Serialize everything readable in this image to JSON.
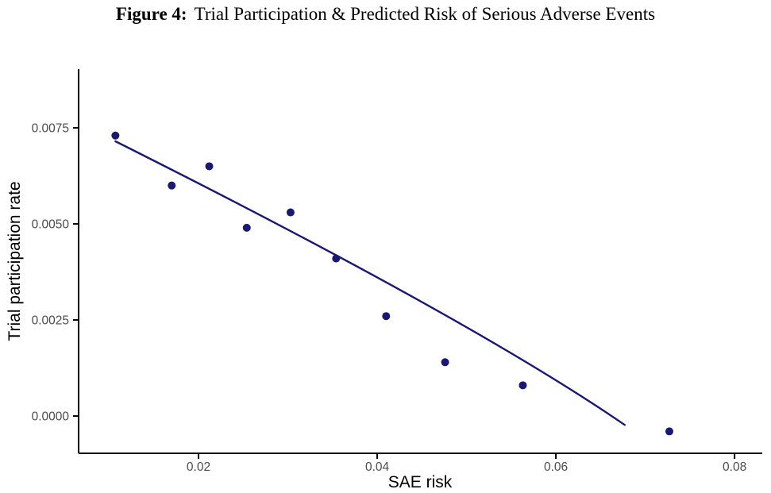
{
  "figure_caption": {
    "label": "Figure 4:",
    "text": "Trial Participation & Predicted Risk of Serious Adverse Events"
  },
  "chart_data": {
    "type": "scatter",
    "title": "Figure 4: Trial Participation & Predicted Risk of Serious Adverse Events",
    "xlabel": "SAE risk",
    "ylabel": "Trial participation rate",
    "xlim": [
      0.00658,
      0.0831
    ],
    "ylim": [
      -0.00097,
      0.00903
    ],
    "grid": false,
    "legend": false,
    "point_color": "#191974",
    "line_color": "#191974",
    "axis_color": "#000000",
    "tick_label_color": "#4d4d4d",
    "x_ticks": [
      {
        "value": 0.02,
        "label": "0.02"
      },
      {
        "value": 0.04,
        "label": "0.04"
      },
      {
        "value": 0.06,
        "label": "0.06"
      },
      {
        "value": 0.08,
        "label": "0.08"
      }
    ],
    "y_ticks": [
      {
        "value": 0.0,
        "label": "0.0000"
      },
      {
        "value": 0.0025,
        "label": "0.0025"
      },
      {
        "value": 0.005,
        "label": "0.0050"
      },
      {
        "value": 0.0075,
        "label": "0.0075"
      }
    ],
    "points": [
      {
        "x": 0.0107,
        "y": 0.0073
      },
      {
        "x": 0.017,
        "y": 0.006
      },
      {
        "x": 0.0212,
        "y": 0.0065
      },
      {
        "x": 0.0254,
        "y": 0.0049
      },
      {
        "x": 0.0303,
        "y": 0.0053
      },
      {
        "x": 0.0354,
        "y": 0.0041
      },
      {
        "x": 0.041,
        "y": 0.0026
      },
      {
        "x": 0.0476,
        "y": 0.0014
      },
      {
        "x": 0.0563,
        "y": 0.0008
      },
      {
        "x": 0.0727,
        "y": -0.0004
      }
    ],
    "fit_line": {
      "start": {
        "x": 0.0107,
        "y": 0.00715
      },
      "mid": {
        "x": 0.0449,
        "y": 0.00298
      },
      "end": {
        "x": 0.0677,
        "y": -0.00023
      }
    }
  }
}
